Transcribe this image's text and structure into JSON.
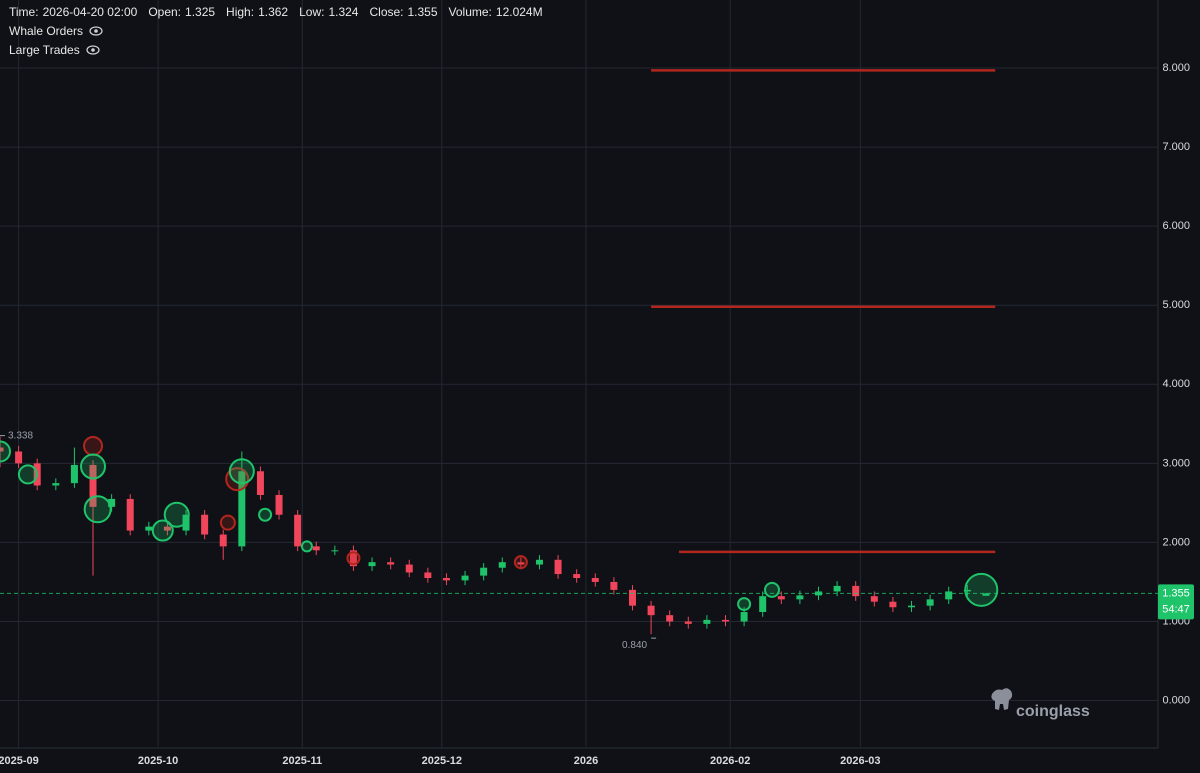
{
  "chart_data": {
    "type": "candlestick",
    "header": [
      {
        "label": "Time:",
        "value": "2026-04-20 02:00"
      },
      {
        "label": "Open:",
        "value": 1.325
      },
      {
        "label": "High:",
        "value": 1.362
      },
      {
        "label": "Low:",
        "value": 1.324
      },
      {
        "label": "Close:",
        "value": 1.355
      },
      {
        "label": "Volume:",
        "value": "12.024M"
      }
    ],
    "overlays": [
      "Whale Orders",
      "Large Trades"
    ],
    "watermark": "coinglass",
    "up_color": "#1fc46a",
    "down_color": "#f0455a",
    "xlim": [
      "2025-08-28",
      "2026-05-04"
    ],
    "xticks": [
      {
        "value": "2025-09-01",
        "label": "2025-09"
      },
      {
        "value": "2025-10-01",
        "label": "2025-10"
      },
      {
        "value": "2025-11-01",
        "label": "2025-11"
      },
      {
        "value": "2025-12-01",
        "label": "2025-12"
      },
      {
        "value": "2026-01-01",
        "label": "2026"
      },
      {
        "value": "2026-02-01",
        "label": "2026-02"
      },
      {
        "value": "2026-03-01",
        "label": "2026-03"
      }
    ],
    "ylim": [
      -0.6,
      8.86
    ],
    "yticks": [
      {
        "value": 0,
        "label": "0.000"
      },
      {
        "value": 1,
        "label": "1.000"
      },
      {
        "value": 2,
        "label": "2.000"
      },
      {
        "value": 3,
        "label": "3.000"
      },
      {
        "value": 4,
        "label": "4.000"
      },
      {
        "value": 5,
        "label": "5.000"
      },
      {
        "value": 6,
        "label": "6.000"
      },
      {
        "value": 7,
        "label": "7.000"
      },
      {
        "value": 8,
        "label": "8.000"
      }
    ],
    "grid": true,
    "candles": {
      "x": [
        "2025-08-28",
        "2025-09-01",
        "2025-09-05",
        "2025-09-09",
        "2025-09-13",
        "2025-09-17",
        "2025-09-21",
        "2025-09-25",
        "2025-09-29",
        "2025-10-03",
        "2025-10-07",
        "2025-10-11",
        "2025-10-15",
        "2025-10-19",
        "2025-10-23",
        "2025-10-27",
        "2025-10-31",
        "2025-11-04",
        "2025-11-08",
        "2025-11-12",
        "2025-11-16",
        "2025-11-20",
        "2025-11-24",
        "2025-11-28",
        "2025-12-02",
        "2025-12-06",
        "2025-12-10",
        "2025-12-14",
        "2025-12-18",
        "2025-12-22",
        "2025-12-26",
        "2025-12-30",
        "2026-01-03",
        "2026-01-07",
        "2026-01-11",
        "2026-01-15",
        "2026-01-19",
        "2026-01-23",
        "2026-01-27",
        "2026-01-31",
        "2026-02-04",
        "2026-02-08",
        "2026-02-12",
        "2026-02-16",
        "2026-02-20",
        "2026-02-24",
        "2026-02-28",
        "2026-03-04",
        "2026-03-08",
        "2026-03-12",
        "2026-03-16",
        "2026-03-20",
        "2026-03-24",
        "2026-03-28"
      ],
      "open": [
        3.2,
        3.15,
        3.0,
        2.72,
        2.75,
        2.98,
        2.45,
        2.55,
        2.15,
        2.2,
        2.15,
        2.35,
        2.1,
        1.95,
        2.9,
        2.6,
        2.35,
        1.95,
        1.9,
        1.9,
        1.7,
        1.75,
        1.72,
        1.62,
        1.55,
        1.52,
        1.58,
        1.68,
        1.75,
        1.72,
        1.78,
        1.6,
        1.55,
        1.5,
        1.4,
        1.2,
        1.08,
        1.0,
        0.97,
        1.02,
        1.0,
        1.12,
        1.32,
        1.28,
        1.33,
        1.38,
        1.45,
        1.32,
        1.25,
        1.18,
        1.2,
        1.28,
        1.38,
        1.325
      ],
      "high": [
        3.338,
        3.22,
        3.06,
        2.81,
        3.2,
        3.04,
        2.61,
        2.61,
        2.26,
        2.26,
        2.41,
        2.41,
        2.16,
        3.15,
        2.96,
        2.66,
        2.41,
        2.01,
        1.96,
        1.96,
        1.81,
        1.81,
        1.78,
        1.68,
        1.61,
        1.64,
        1.74,
        1.81,
        1.81,
        1.84,
        1.84,
        1.66,
        1.61,
        1.56,
        1.46,
        1.26,
        1.14,
        1.06,
        1.08,
        1.08,
        1.18,
        1.38,
        1.38,
        1.39,
        1.44,
        1.51,
        1.51,
        1.38,
        1.31,
        1.26,
        1.34,
        1.44,
        1.46,
        1.362
      ],
      "low": [
        2.95,
        2.94,
        2.66,
        2.66,
        2.69,
        1.58,
        2.39,
        2.09,
        2.09,
        2.09,
        2.09,
        2.04,
        1.78,
        1.89,
        2.54,
        2.29,
        1.89,
        1.84,
        1.84,
        1.64,
        1.64,
        1.66,
        1.56,
        1.49,
        1.46,
        1.46,
        1.52,
        1.62,
        1.66,
        1.66,
        1.54,
        1.49,
        1.44,
        1.34,
        1.14,
        0.84,
        0.94,
        0.91,
        0.91,
        0.94,
        0.94,
        1.06,
        1.22,
        1.22,
        1.27,
        1.32,
        1.26,
        1.19,
        1.12,
        1.12,
        1.14,
        1.22,
        1.32,
        1.324
      ],
      "close": [
        3.15,
        3.0,
        2.72,
        2.75,
        2.98,
        2.45,
        2.55,
        2.15,
        2.2,
        2.15,
        2.35,
        2.1,
        1.95,
        2.9,
        2.6,
        2.35,
        1.95,
        1.9,
        1.9,
        1.7,
        1.75,
        1.72,
        1.62,
        1.55,
        1.52,
        1.58,
        1.68,
        1.75,
        1.72,
        1.78,
        1.6,
        1.55,
        1.5,
        1.4,
        1.2,
        1.08,
        1.0,
        0.97,
        1.02,
        1.0,
        1.12,
        1.32,
        1.28,
        1.33,
        1.38,
        1.45,
        1.32,
        1.25,
        1.18,
        1.2,
        1.28,
        1.38,
        1.4,
        1.355
      ]
    },
    "large_trades": [
      {
        "x": "2025-08-28",
        "price": 3.15,
        "size": 10,
        "color": "#1fc46a"
      },
      {
        "x": "2025-09-03",
        "price": 2.86,
        "size": 9,
        "color": "#1fc46a"
      },
      {
        "x": "2025-09-17",
        "price": 3.22,
        "size": 9,
        "color": "#b3261e"
      },
      {
        "x": "2025-09-17",
        "price": 2.96,
        "size": 12,
        "color": "#1fc46a"
      },
      {
        "x": "2025-09-18",
        "price": 2.42,
        "size": 13,
        "color": "#1fc46a"
      },
      {
        "x": "2025-10-02",
        "price": 2.15,
        "size": 10,
        "color": "#1fc46a"
      },
      {
        "x": "2025-10-05",
        "price": 2.35,
        "size": 12,
        "color": "#1fc46a"
      },
      {
        "x": "2025-10-16",
        "price": 2.25,
        "size": 7,
        "color": "#b3261e"
      },
      {
        "x": "2025-10-18",
        "price": 2.8,
        "size": 11,
        "color": "#b3261e"
      },
      {
        "x": "2025-10-19",
        "price": 2.9,
        "size": 12,
        "color": "#1fc46a"
      },
      {
        "x": "2025-10-24",
        "price": 2.35,
        "size": 6,
        "color": "#1fc46a"
      },
      {
        "x": "2025-11-02",
        "price": 1.95,
        "size": 5,
        "color": "#1fc46a"
      },
      {
        "x": "2025-11-12",
        "price": 1.8,
        "size": 6,
        "color": "#b3261e"
      },
      {
        "x": "2025-12-18",
        "price": 1.75,
        "size": 6,
        "color": "#b3261e"
      },
      {
        "x": "2026-02-04",
        "price": 1.22,
        "size": 6,
        "color": "#1fc46a"
      },
      {
        "x": "2026-02-10",
        "price": 1.4,
        "size": 7,
        "color": "#1fc46a"
      },
      {
        "x": "2026-03-27",
        "price": 1.4,
        "size": 16,
        "color": "#1fc46a"
      }
    ],
    "whale_orders": {
      "color": "#b3261e",
      "levels": [
        {
          "price": 7.97,
          "start": "2026-01-15",
          "end": "2026-03-30"
        },
        {
          "price": 4.98,
          "start": "2026-01-15",
          "end": "2026-03-30"
        },
        {
          "price": 1.88,
          "start": "2026-01-21",
          "end": "2026-03-30"
        }
      ]
    },
    "annotations": [
      {
        "x": "2025-08-28",
        "value": 3.338
      },
      {
        "x": "2026-01-15",
        "value": 0.84,
        "label": "0.840"
      }
    ],
    "last_price": {
      "value": 1.355,
      "color": "#1fc46a",
      "countdown": "54:47"
    }
  }
}
